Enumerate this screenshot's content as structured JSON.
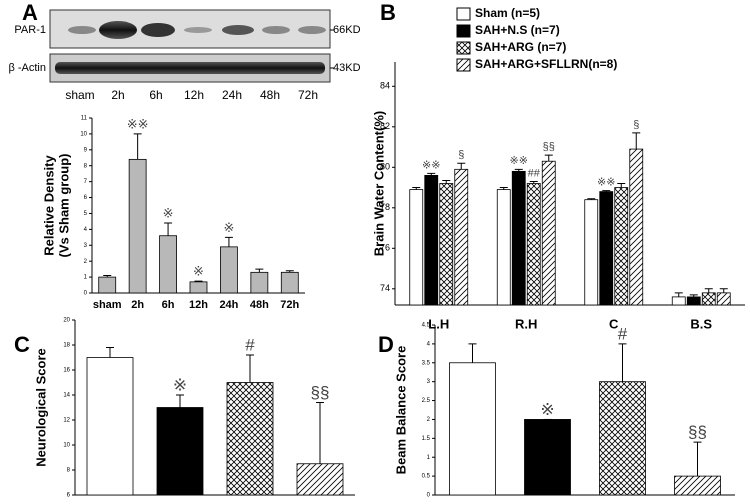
{
  "chart_data": [
    {
      "type": "bar",
      "letter": "A",
      "blot": {
        "rows": [
          "PAR-1",
          "β -Actin"
        ],
        "sizes": [
          "66KD",
          "43KD"
        ],
        "lanes": [
          "sham",
          "2h",
          "6h",
          "12h",
          "24h",
          "48h",
          "72h"
        ]
      },
      "ylabel": [
        "Relative Density",
        "(Vs Sham group)"
      ],
      "categories": [
        "sham",
        "2h",
        "6h",
        "12h",
        "24h",
        "48h",
        "72h"
      ],
      "values": [
        1.0,
        8.4,
        3.6,
        0.7,
        2.9,
        1.3,
        1.3
      ],
      "errors": [
        0.1,
        1.6,
        0.8,
        0.05,
        0.6,
        0.2,
        0.1
      ],
      "color": "#b8b8b8",
      "ylim": [
        0,
        11
      ],
      "yticks": [
        0,
        1,
        2,
        3,
        4,
        5,
        6,
        7,
        8,
        9,
        10,
        11
      ],
      "annotations": [
        {
          "text": "※※",
          "category": "2h"
        },
        {
          "text": "※",
          "category": "6h"
        },
        {
          "text": "※",
          "category": "12h"
        },
        {
          "text": "※",
          "category": "24h"
        }
      ]
    },
    {
      "type": "grouped-bar",
      "letter": "B",
      "ylabel": "Brain Water Content(%)",
      "categories": [
        "L.H",
        "R.H",
        "C",
        "B.S"
      ],
      "series": [
        {
          "name": "Sham (n=5)",
          "color": "#ffffff",
          "pattern": "none",
          "values": [
            78.9,
            78.9,
            78.4,
            73.6
          ],
          "errors": [
            0.1,
            0.1,
            0.05,
            0.2
          ]
        },
        {
          "name": "SAH+N.S (n=7)",
          "color": "#000000",
          "pattern": "none",
          "values": [
            79.6,
            79.8,
            78.8,
            73.6
          ],
          "errors": [
            0.1,
            0.1,
            0.05,
            0.1
          ]
        },
        {
          "name": "SAH+ARG (n=7)",
          "color": "#ffffff",
          "pattern": "crosshatch",
          "values": [
            79.2,
            79.2,
            79.0,
            73.8
          ],
          "errors": [
            0.15,
            0.1,
            0.2,
            0.2
          ]
        },
        {
          "name": "SAH+ARG+SFLLRN(n=8)",
          "color": "#ffffff",
          "pattern": "diagonal",
          "values": [
            79.9,
            80.3,
            80.9,
            73.8
          ],
          "errors": [
            0.3,
            0.3,
            0.8,
            0.2
          ]
        }
      ],
      "ylim": [
        73.2,
        85.2
      ],
      "yticks": [
        74,
        76,
        78,
        80,
        82,
        84
      ],
      "annotations": [
        {
          "text": "※※",
          "category": "L.H",
          "series": "SAH+N.S (n=7)"
        },
        {
          "text": "§",
          "category": "L.H",
          "series": "SAH+ARG+SFLLRN(n=8)"
        },
        {
          "text": "※※",
          "category": "R.H",
          "series": "SAH+N.S (n=7)"
        },
        {
          "text": "##",
          "category": "R.H",
          "series": "SAH+ARG (n=7)"
        },
        {
          "text": "§§",
          "category": "R.H",
          "series": "SAH+ARG+SFLLRN(n=8)"
        },
        {
          "text": "※※",
          "category": "C",
          "series": "SAH+N.S (n=7)"
        },
        {
          "text": "§",
          "category": "C",
          "series": "SAH+ARG+SFLLRN(n=8)"
        }
      ]
    },
    {
      "type": "bar",
      "letter": "C",
      "ylabel": "Neurological Score",
      "values": [
        17,
        13,
        15,
        8.5
      ],
      "errors": [
        0.8,
        1.0,
        2.2,
        4.9
      ],
      "colors": [
        "#ffffff",
        "#000000",
        "#ffffff",
        "#ffffff"
      ],
      "patterns": [
        "none",
        "none",
        "crosshatch",
        "diagonal"
      ],
      "ylim": [
        6,
        20
      ],
      "yticks": [
        6,
        8,
        10,
        12,
        14,
        16,
        18,
        20
      ],
      "annotations": [
        "※",
        "#",
        "§§"
      ]
    },
    {
      "type": "bar",
      "letter": "D",
      "ylabel": "Beam Balance Score",
      "values": [
        3.5,
        2,
        3,
        0.5
      ],
      "errors": [
        0.5,
        0,
        1.0,
        0.9
      ],
      "colors": [
        "#ffffff",
        "#000000",
        "#ffffff",
        "#ffffff"
      ],
      "patterns": [
        "none",
        "none",
        "crosshatch",
        "diagonal"
      ],
      "ylim": [
        0,
        4.5
      ],
      "yticks": [
        0,
        0.5,
        1,
        1.5,
        2,
        2.5,
        3,
        3.5,
        4,
        4.5
      ],
      "annotations": [
        "※",
        "#",
        "§§"
      ]
    }
  ]
}
